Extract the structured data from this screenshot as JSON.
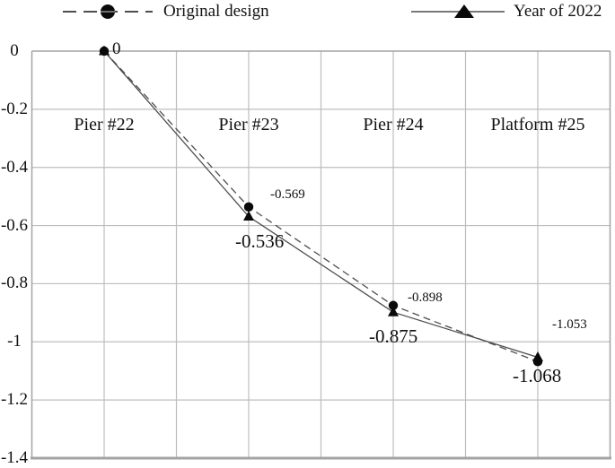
{
  "chart_data": {
    "type": "line",
    "title": "",
    "xlabel": "",
    "ylabel": "",
    "categories": [
      "Pier #22",
      "Pier #23",
      "Pier #24",
      "Platform #25"
    ],
    "series": [
      {
        "name": "Original design",
        "marker": "circle",
        "line_style": "dashed",
        "values": [
          0,
          -0.536,
          -0.875,
          -1.068
        ],
        "point_labels": [
          "0",
          "-0.536",
          "-0.875",
          "-1.068"
        ]
      },
      {
        "name": "Year of 2022",
        "marker": "triangle",
        "line_style": "solid",
        "values": [
          0,
          -0.569,
          -0.898,
          -1.053
        ],
        "point_labels": [
          "",
          "-0.569",
          "-0.898",
          "-1.053"
        ]
      }
    ],
    "ylim": [
      -1.4,
      0
    ],
    "yticks": [
      0,
      -0.2,
      -0.4,
      -0.6,
      -0.8,
      -1,
      -1.2,
      -1.4
    ],
    "ytick_labels": [
      "0",
      "-0.2",
      "-0.4",
      "-0.6",
      "-0.8",
      "-1",
      "-1.2",
      "-1.4"
    ],
    "grid": true,
    "legend_position": "top"
  },
  "legend": {
    "items": [
      {
        "label": "Original design",
        "symbol": "dashed-line-circle"
      },
      {
        "label": "Year of 2022",
        "symbol": "solid-line-triangle"
      }
    ]
  },
  "colors": {
    "background": "#ffffff",
    "grid": "#bdbdbd",
    "axis": "#a3a3a3",
    "series_line": "#4d4d4d",
    "marker": "#0a0a0a",
    "text": "#111111"
  }
}
